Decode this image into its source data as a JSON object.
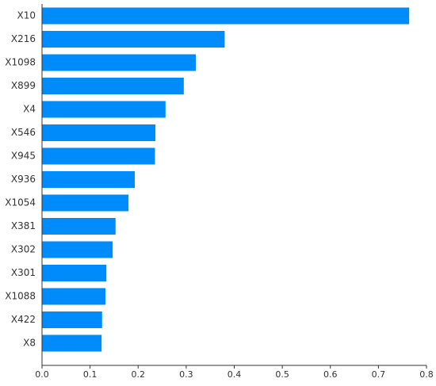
{
  "chart_data": {
    "type": "barh",
    "categories": [
      "X10",
      "X216",
      "X1098",
      "X899",
      "X4",
      "X546",
      "X945",
      "X936",
      "X1054",
      "X381",
      "X302",
      "X301",
      "X1088",
      "X422",
      "X8"
    ],
    "values": [
      0.764,
      0.38,
      0.32,
      0.295,
      0.257,
      0.236,
      0.235,
      0.193,
      0.18,
      0.153,
      0.147,
      0.134,
      0.132,
      0.125,
      0.124
    ],
    "color": "#008bfb",
    "xlim": [
      0,
      0.8
    ],
    "xticks": [
      {
        "value": 0,
        "label": "0.0"
      },
      0.1,
      0.2,
      0.3,
      0.4,
      0.5,
      0.6,
      0.7,
      0.8
    ]
  }
}
